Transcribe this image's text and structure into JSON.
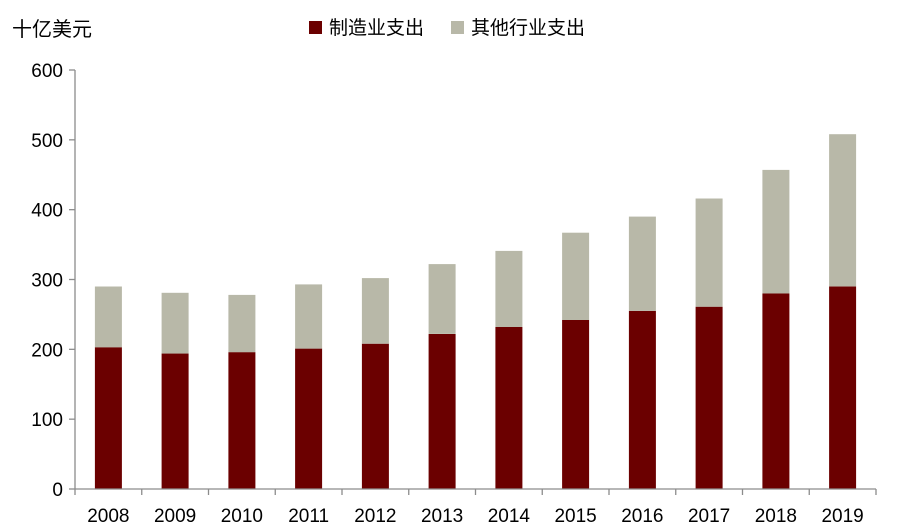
{
  "chart_data": {
    "type": "bar",
    "stacked": true,
    "ylabel": "十亿美元",
    "ylim": [
      0,
      600
    ],
    "yticks": [
      0,
      100,
      200,
      300,
      400,
      500,
      600
    ],
    "grid": false,
    "legend_position": "top-center",
    "categories": [
      "2008",
      "2009",
      "2010",
      "2011",
      "2012",
      "2013",
      "2014",
      "2015",
      "2016",
      "2017",
      "2018",
      "2019"
    ],
    "series": [
      {
        "name": "制造业支出",
        "color": "#6b0000",
        "values": [
          203,
          194,
          196,
          201,
          208,
          222,
          232,
          242,
          255,
          261,
          280,
          290
        ]
      },
      {
        "name": "其他行业支出",
        "color": "#b8b8a8",
        "values": [
          87,
          87,
          82,
          92,
          94,
          100,
          109,
          125,
          135,
          155,
          177,
          218
        ]
      }
    ]
  }
}
